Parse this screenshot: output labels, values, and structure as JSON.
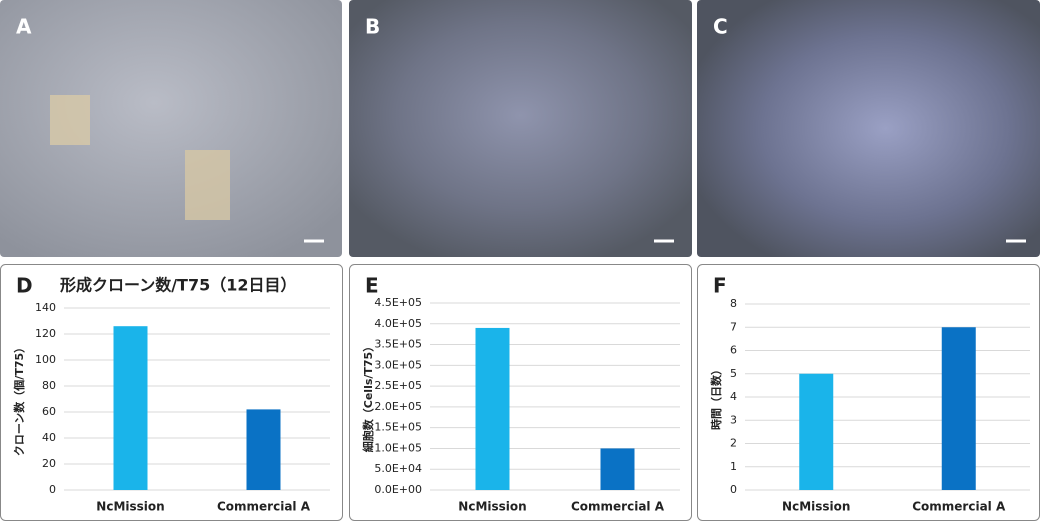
{
  "images": [
    {
      "label": "A"
    },
    {
      "label": "B"
    },
    {
      "label": "C"
    }
  ],
  "chart_data": [
    {
      "type": "bar",
      "label": "D",
      "title": "形成クローン数/T75（12日目）",
      "y_label": "クローン数（個/T75）",
      "categories": [
        "NcMission",
        "Commercial A"
      ],
      "values": [
        126,
        62
      ],
      "colors": [
        "#1ab4ea",
        "#0a72c5"
      ],
      "ylim": [
        0,
        140
      ],
      "yticks": [
        0,
        20,
        40,
        60,
        80,
        100,
        120,
        140
      ],
      "grid": true
    },
    {
      "type": "bar",
      "label": "E",
      "y_label": "細胞数（Cells/T75）",
      "categories": [
        "NcMission",
        "Commercial A"
      ],
      "values": [
        390000,
        100000
      ],
      "colors": [
        "#1ab4ea",
        "#0a72c5"
      ],
      "ylim": [
        0,
        450000
      ],
      "yticks": [
        {
          "value": 0,
          "label": "0.0E+00"
        },
        {
          "value": 50000,
          "label": "5.0E+04"
        },
        {
          "value": 100000,
          "label": "1.0E+05"
        },
        {
          "value": 150000,
          "label": "1.5E+05"
        },
        {
          "value": 200000,
          "label": "2.0E+05"
        },
        {
          "value": 250000,
          "label": "2.5E+05"
        },
        {
          "value": 300000,
          "label": "3.0E+05"
        },
        {
          "value": 350000,
          "label": "3.5E+05"
        },
        {
          "value": 400000,
          "label": "4.0E+05"
        },
        {
          "value": 450000,
          "label": "4.5E+05"
        }
      ],
      "grid": true
    },
    {
      "type": "bar",
      "label": "F",
      "y_label": "時間（日数）",
      "categories": [
        "NcMission",
        "Commercial A"
      ],
      "values": [
        5,
        7
      ],
      "colors": [
        "#1ab4ea",
        "#0a72c5"
      ],
      "ylim": [
        0,
        8
      ],
      "yticks": [
        0,
        1,
        2,
        3,
        4,
        5,
        6,
        7,
        8
      ],
      "grid": true
    }
  ]
}
